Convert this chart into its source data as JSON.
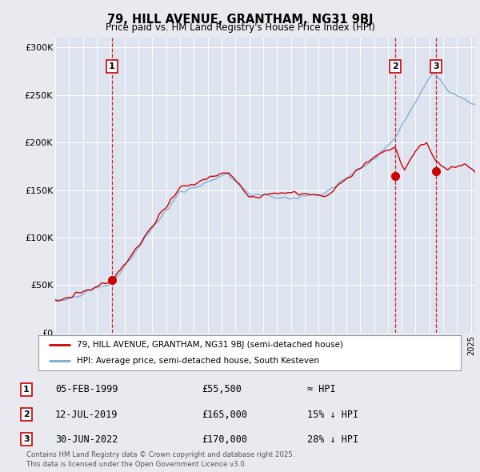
{
  "title_line1": "79, HILL AVENUE, GRANTHAM, NG31 9BJ",
  "title_line2": "Price paid vs. HM Land Registry's House Price Index (HPI)",
  "bg_color": "#e8eaf0",
  "plot_bg_color": "#dde3ef",
  "ylim": [
    0,
    310000
  ],
  "yticks": [
    0,
    50000,
    100000,
    150000,
    200000,
    250000,
    300000
  ],
  "ytick_labels": [
    "£0",
    "£50K",
    "£100K",
    "£150K",
    "£200K",
    "£250K",
    "£300K"
  ],
  "sale_year_floats": [
    1999.09,
    2019.53,
    2022.49
  ],
  "sale_prices": [
    55500,
    165000,
    170000
  ],
  "sale_labels": [
    "1",
    "2",
    "3"
  ],
  "legend_line1": "79, HILL AVENUE, GRANTHAM, NG31 9BJ (semi-detached house)",
  "legend_line2": "HPI: Average price, semi-detached house, South Kesteven",
  "table_rows": [
    {
      "num": "1",
      "date": "05-FEB-1999",
      "price": "£55,500",
      "vs_hpi": "≈ HPI"
    },
    {
      "num": "2",
      "date": "12-JUL-2019",
      "price": "£165,000",
      "vs_hpi": "15% ↓ HPI"
    },
    {
      "num": "3",
      "date": "30-JUN-2022",
      "price": "£170,000",
      "vs_hpi": "28% ↓ HPI"
    }
  ],
  "footnote": "Contains HM Land Registry data © Crown copyright and database right 2025.\nThis data is licensed under the Open Government Licence v3.0.",
  "hpi_color": "#7aaad0",
  "sale_line_color": "#cc0000",
  "vline_color": "#cc0000",
  "grid_color": "#ffffff"
}
